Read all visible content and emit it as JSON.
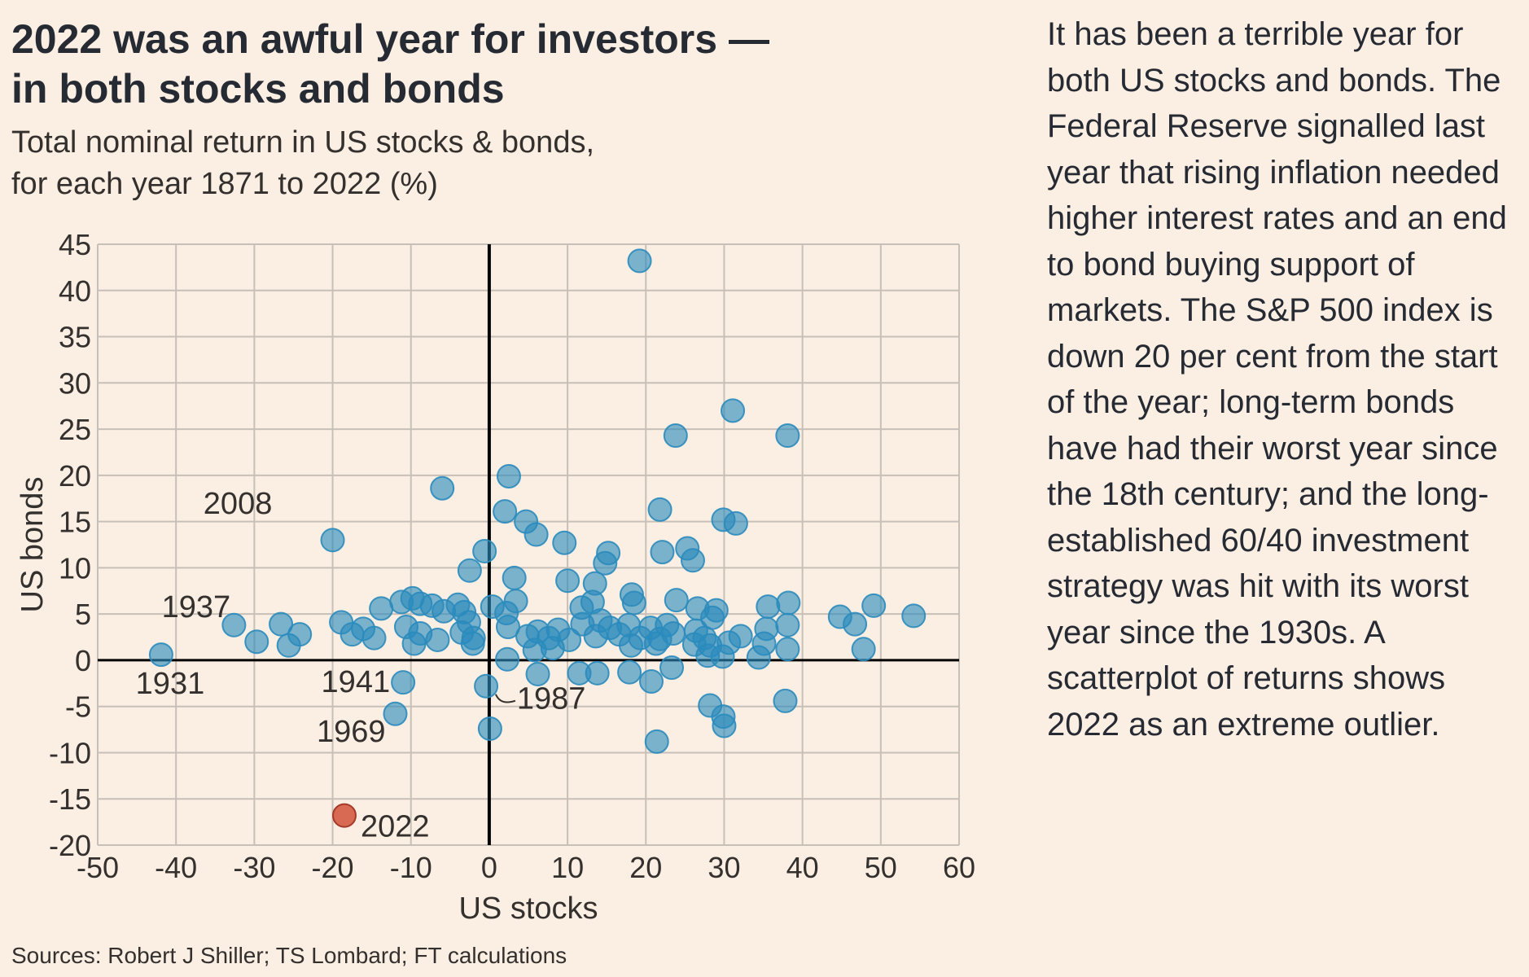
{
  "header": {
    "title_line1": "2022 was an awful year for investors —",
    "title_line2": "in both stocks and bonds",
    "subtitle_line1": "Total nominal return in US stocks & bonds,",
    "subtitle_line2": "for each year 1871 to 2022 (%)"
  },
  "aside": {
    "text": "It has been a terrible year for both US stocks and bonds. The Federal Reserve signalled last year that rising inflation needed higher interest rates and an end to bond buying support of markets. The S&P 500 index is down 20 per cent from the start of the year; long-term bonds have had their worst year since the 18th century; and the long-established 60/40 investment strategy was hit with its worst year since the 1930s. A scatterplot of returns shows 2022 as an extreme outlier."
  },
  "footer": {
    "source": "Sources: Robert J Shiller; TS Lombard; FT calculations"
  },
  "colors": {
    "background": "#fbeee2",
    "point": "#2a8bbd",
    "highlight": "#d1513a",
    "grid": "#c7c0b9",
    "axis_zero": "#000000"
  },
  "chart_data": {
    "type": "scatter",
    "xlabel": "US stocks",
    "ylabel": "US bonds",
    "xlim": [
      -50,
      60
    ],
    "ylim": [
      -20,
      45
    ],
    "xticks": [
      "-50",
      "-40",
      "-30",
      "-20",
      "-10",
      "0",
      "10",
      "20",
      "30",
      "40",
      "50",
      "60"
    ],
    "yticks": [
      "45",
      "40",
      "35",
      "30",
      "25",
      "20",
      "15",
      "10",
      "5",
      "0",
      "-5",
      "-10",
      "-15",
      "-20"
    ],
    "grid": true,
    "annotations": [
      {
        "label": "2008",
        "x": -39,
        "y": 14.8
      },
      {
        "label": "1937",
        "x": -32,
        "y": 3.8
      },
      {
        "label": "1931",
        "x": -42,
        "y": 0.6
      },
      {
        "label": "1941",
        "x": -11,
        "y": -2.4
      },
      {
        "label": "1969",
        "x": -12,
        "y": -5.8
      },
      {
        "label": "1987",
        "x": 0,
        "y": -2.8
      },
      {
        "label": "2022",
        "x": -18.5,
        "y": -16.8
      }
    ],
    "series": [
      {
        "name": "",
        "points": [
          [
            19.2,
            43.2
          ],
          [
            31.1,
            27
          ],
          [
            23.8,
            24.3
          ],
          [
            38.1,
            24.3
          ],
          [
            2.5,
            19.9
          ],
          [
            -6,
            18.6
          ],
          [
            21.8,
            16.3
          ],
          [
            2,
            16.1
          ],
          [
            4.7,
            15
          ],
          [
            29.9,
            15.2
          ],
          [
            31.5,
            14.8
          ],
          [
            -20,
            13
          ],
          [
            6,
            13.6
          ],
          [
            9.6,
            12.7
          ],
          [
            -0.6,
            11.8
          ],
          [
            15.2,
            11.6
          ],
          [
            22.1,
            11.7
          ],
          [
            25.3,
            12.1
          ],
          [
            26,
            10.8
          ],
          [
            14.8,
            10.5
          ],
          [
            -2.5,
            9.7
          ],
          [
            3.2,
            8.9
          ],
          [
            10,
            8.6
          ],
          [
            13.5,
            8.3
          ],
          [
            18.2,
            7.1
          ],
          [
            -13.8,
            5.6
          ],
          [
            -11.2,
            6.3
          ],
          [
            -9.8,
            6.7
          ],
          [
            -8.8,
            6.1
          ],
          [
            -7.3,
            5.9
          ],
          [
            -5.8,
            5.3
          ],
          [
            -4,
            6
          ],
          [
            -3.2,
            5.2
          ],
          [
            -2.6,
            4.1
          ],
          [
            0.4,
            5.8
          ],
          [
            2.2,
            5.1
          ],
          [
            3.4,
            6.4
          ],
          [
            11.8,
            5.7
          ],
          [
            13.2,
            6.3
          ],
          [
            14.2,
            4.3
          ],
          [
            18.5,
            6.2
          ],
          [
            23.9,
            6.5
          ],
          [
            26.6,
            5.6
          ],
          [
            28.5,
            4.6
          ],
          [
            29,
            5.4
          ],
          [
            35.6,
            5.8
          ],
          [
            38.2,
            6.2
          ],
          [
            44.8,
            4.7
          ],
          [
            46.7,
            3.9
          ],
          [
            49.1,
            5.9
          ],
          [
            54.2,
            4.8
          ],
          [
            -32.6,
            3.8
          ],
          [
            -26.6,
            3.9
          ],
          [
            -24.2,
            2.8
          ],
          [
            -18.9,
            4.1
          ],
          [
            -16.1,
            3.4
          ],
          [
            -17.5,
            2.8
          ],
          [
            -14.7,
            2.4
          ],
          [
            -10.6,
            3.6
          ],
          [
            -8.8,
            2.9
          ],
          [
            -6.6,
            2.2
          ],
          [
            -3.5,
            3
          ],
          [
            -2,
            2.4
          ],
          [
            2.4,
            3.6
          ],
          [
            4.9,
            2.6
          ],
          [
            6.2,
            3.1
          ],
          [
            7.6,
            2.4
          ],
          [
            8.8,
            3.3
          ],
          [
            10.2,
            2.2
          ],
          [
            11.9,
            3.9
          ],
          [
            13.6,
            2.6
          ],
          [
            15.4,
            3.5
          ],
          [
            16.6,
            2.8
          ],
          [
            17.8,
            3.8
          ],
          [
            19.3,
            2.4
          ],
          [
            20.6,
            3.5
          ],
          [
            21.8,
            2.3
          ],
          [
            22.7,
            3.8
          ],
          [
            23.5,
            2.9
          ],
          [
            26.4,
            3.2
          ],
          [
            27.5,
            2.4
          ],
          [
            28.2,
            1.6
          ],
          [
            30.6,
            1.9
          ],
          [
            32.1,
            2.6
          ],
          [
            35.4,
            3.4
          ],
          [
            38.1,
            3.8
          ],
          [
            35.1,
            1.8
          ],
          [
            38.1,
            1.2
          ],
          [
            47.8,
            1.2
          ],
          [
            -29.7,
            2
          ],
          [
            -25.6,
            1.6
          ],
          [
            -9.6,
            1.8
          ],
          [
            -2.1,
            1.8
          ],
          [
            5.8,
            1.1
          ],
          [
            8.1,
            1.3
          ],
          [
            18.1,
            1.6
          ],
          [
            21.3,
            1.8
          ],
          [
            26.2,
            1.7
          ],
          [
            -41.9,
            0.6
          ],
          [
            2.3,
            0.1
          ],
          [
            27.9,
            0.5
          ],
          [
            29.8,
            0.4
          ],
          [
            34.4,
            0.3
          ],
          [
            6.2,
            -1.5
          ],
          [
            11.5,
            -1.4
          ],
          [
            13.8,
            -1.4
          ],
          [
            17.9,
            -1.3
          ],
          [
            20.7,
            -2.3
          ],
          [
            23.3,
            -0.8
          ],
          [
            -11,
            -2.4
          ],
          [
            -0.4,
            -2.8
          ],
          [
            -12,
            -5.8
          ],
          [
            0.1,
            -7.4
          ],
          [
            28.2,
            -4.9
          ],
          [
            29.9,
            -6.1
          ],
          [
            30,
            -7.1
          ],
          [
            37.8,
            -4.4
          ],
          [
            21.4,
            -8.8
          ]
        ]
      },
      {
        "name": "",
        "points": [
          [
            -18.5,
            -16.8
          ]
        ]
      }
    ]
  }
}
